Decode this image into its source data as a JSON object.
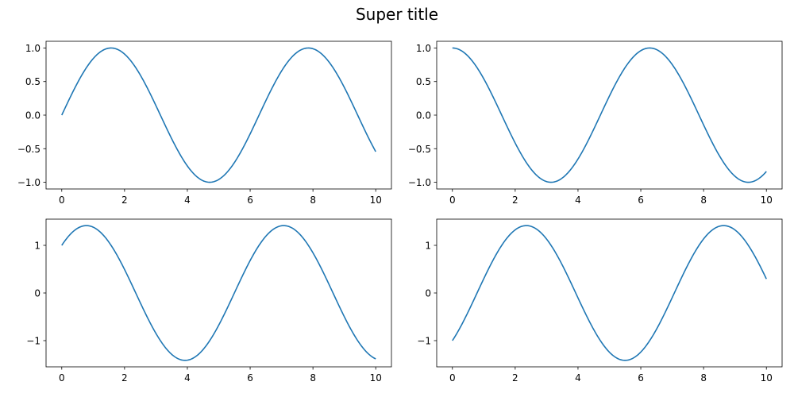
{
  "figure": {
    "suptitle": "Super title"
  },
  "colors": {
    "series": "#1f77b4"
  },
  "chart_data": [
    {
      "type": "line",
      "title": "",
      "xlabel": "",
      "ylabel": "",
      "function": "sin(x)",
      "x_range": [
        0,
        10
      ],
      "xlim": [
        -0.5,
        10.5
      ],
      "ylim": [
        -1.1,
        1.1
      ],
      "xticks": [
        0,
        2,
        4,
        6,
        8,
        10
      ],
      "xtick_labels": [
        "0",
        "2",
        "4",
        "6",
        "8",
        "10"
      ],
      "yticks": [
        -1.0,
        -0.5,
        0.0,
        0.5,
        1.0
      ],
      "ytick_labels": [
        "−1.0",
        "−0.5",
        "0.0",
        "0.5",
        "1.0"
      ],
      "grid": false,
      "series": [
        {
          "x": [
            0,
            1,
            1.57,
            2,
            3,
            4,
            4.71,
            5,
            6,
            7,
            7.85,
            8,
            9,
            10
          ],
          "y": [
            0,
            0.84,
            1.0,
            0.91,
            0.14,
            -0.76,
            -1.0,
            -0.96,
            -0.28,
            0.66,
            1.0,
            0.99,
            0.41,
            -0.54
          ]
        }
      ]
    },
    {
      "type": "line",
      "title": "",
      "xlabel": "",
      "ylabel": "",
      "function": "cos(x)",
      "x_range": [
        0,
        10
      ],
      "xlim": [
        -0.5,
        10.5
      ],
      "ylim": [
        -1.1,
        1.1
      ],
      "xticks": [
        0,
        2,
        4,
        6,
        8,
        10
      ],
      "xtick_labels": [
        "0",
        "2",
        "4",
        "6",
        "8",
        "10"
      ],
      "yticks": [
        -1.0,
        -0.5,
        0.0,
        0.5,
        1.0
      ],
      "ytick_labels": [
        "−1.0",
        "−0.5",
        "0.0",
        "0.5",
        "1.0"
      ],
      "grid": false,
      "series": [
        {
          "x": [
            0,
            1,
            2,
            3,
            3.14,
            4,
            5,
            6,
            6.28,
            7,
            8,
            9,
            9.42,
            10
          ],
          "y": [
            1.0,
            0.54,
            -0.42,
            -0.99,
            -1.0,
            -0.65,
            0.28,
            0.96,
            1.0,
            0.75,
            -0.15,
            -0.91,
            -1.0,
            -0.84
          ]
        }
      ]
    },
    {
      "type": "line",
      "title": "",
      "xlabel": "",
      "ylabel": "",
      "function": "sin(x) + cos(x)",
      "x_range": [
        0,
        10
      ],
      "xlim": [
        -0.5,
        10.5
      ],
      "ylim": [
        -1.55,
        1.55
      ],
      "xticks": [
        0,
        2,
        4,
        6,
        8,
        10
      ],
      "xtick_labels": [
        "0",
        "2",
        "4",
        "6",
        "8",
        "10"
      ],
      "yticks": [
        -1,
        0,
        1
      ],
      "ytick_labels": [
        "−1",
        "0",
        "1"
      ],
      "grid": false,
      "series": [
        {
          "x": [
            0,
            0.79,
            2,
            3,
            3.93,
            5,
            6,
            7.07,
            8,
            9,
            10
          ],
          "y": [
            1.0,
            1.41,
            0.49,
            -0.85,
            -1.41,
            -0.68,
            0.68,
            1.41,
            0.84,
            -0.5,
            -1.38
          ]
        }
      ]
    },
    {
      "type": "line",
      "title": "",
      "xlabel": "",
      "ylabel": "",
      "function": "sin(x) - cos(x)",
      "x_range": [
        0,
        10
      ],
      "xlim": [
        -0.5,
        10.5
      ],
      "ylim": [
        -1.55,
        1.55
      ],
      "xticks": [
        0,
        2,
        4,
        6,
        8,
        10
      ],
      "xtick_labels": [
        "0",
        "2",
        "4",
        "6",
        "8",
        "10"
      ],
      "yticks": [
        -1,
        0,
        1
      ],
      "ytick_labels": [
        "−1",
        "0",
        "1"
      ],
      "grid": false,
      "series": [
        {
          "x": [
            0,
            1,
            2,
            2.36,
            3,
            4,
            5,
            5.5,
            6,
            7,
            8,
            8.64,
            9,
            10
          ],
          "y": [
            -1.0,
            0.3,
            1.33,
            1.41,
            1.13,
            -0.11,
            -1.24,
            -1.41,
            -1.24,
            -0.1,
            1.14,
            1.41,
            1.32,
            0.3
          ]
        }
      ]
    }
  ]
}
